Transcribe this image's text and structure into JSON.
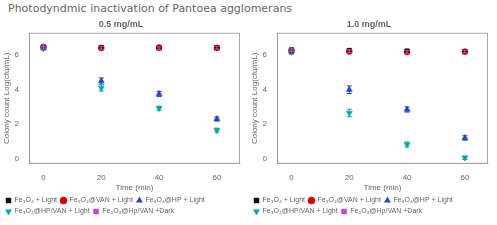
{
  "title": "Photodyndmic inactivation of Pantoea agglomerans",
  "chart_data": [
    {
      "type": "scatter",
      "title": "0.5 mg/mL",
      "x_label": "Time (min)",
      "y_label": "Colony count Log(cfu/mL)",
      "x": [
        0,
        20,
        40,
        60
      ],
      "xlim": [
        -5,
        68
      ],
      "xticks": [
        0,
        20,
        40,
        60
      ],
      "ylim": [
        -0.3,
        7.3
      ],
      "yticks": [
        0,
        2,
        4,
        6
      ],
      "grid": false,
      "legend": "lower left",
      "series": [
        {
          "name": "Fe₃O₄ + Light",
          "color": "#111111",
          "marker": "square",
          "values": [
            6.5,
            6.45,
            6.42,
            6.45
          ],
          "errors": [
            0.12,
            0.08,
            0.08,
            0.08
          ]
        },
        {
          "name": "Fe₃O₄@VAN + Light",
          "color": "#dd0000",
          "marker": "circle",
          "values": [
            6.48,
            6.42,
            6.44,
            6.42
          ],
          "errors": [
            0.1,
            0.08,
            0.08,
            0.08
          ]
        },
        {
          "name": "Fe₃O₄@HP + Light",
          "color": "#2244cc",
          "marker": "triangle_up",
          "values": [
            6.42,
            4.5,
            3.75,
            2.3
          ],
          "errors": [
            0.1,
            0.18,
            0.15,
            0.12
          ]
        },
        {
          "name": "Fe₃O₄@HP/VAN + Light",
          "color": "#00aaaa",
          "marker": "triangle_down",
          "values": [
            6.4,
            4.1,
            2.92,
            1.65
          ],
          "errors": [
            0.1,
            0.18,
            0.12,
            0.12
          ]
        },
        {
          "name": "Fe₃O₄@Hp/VAN +Dark",
          "color": "#cc44cc",
          "marker": "square",
          "values": [
            6.52,
            6.44,
            6.4,
            6.44
          ],
          "errors": [
            0.1,
            0.08,
            0.08,
            0.08
          ]
        }
      ]
    },
    {
      "type": "scatter",
      "title": "1.0 mg/mL",
      "x_label": "Time (min)",
      "y_label": "Colony count Log(cfu/mL)",
      "x": [
        0,
        20,
        40,
        60
      ],
      "xlim": [
        -5,
        68
      ],
      "xticks": [
        0,
        20,
        40,
        60
      ],
      "ylim": [
        -0.3,
        7.3
      ],
      "yticks": [
        0,
        2,
        4,
        6
      ],
      "grid": false,
      "legend": "lower left",
      "series": [
        {
          "name": "Fe₃O₄ + Light",
          "color": "#111111",
          "marker": "square",
          "values": [
            6.3,
            6.28,
            6.25,
            6.22
          ],
          "errors": [
            0.12,
            0.08,
            0.08,
            0.08
          ]
        },
        {
          "name": "Fe₃O₄@VAN + Light",
          "color": "#dd0000",
          "marker": "circle",
          "values": [
            6.28,
            6.22,
            6.18,
            6.2
          ],
          "errors": [
            0.1,
            0.08,
            0.08,
            0.08
          ]
        },
        {
          "name": "Fe₃O₄@HP + Light",
          "color": "#2244cc",
          "marker": "triangle_up",
          "values": [
            6.22,
            4.0,
            2.85,
            1.2
          ],
          "errors": [
            0.12,
            0.22,
            0.15,
            0.13
          ]
        },
        {
          "name": "Fe₃O₄@HP/VAN + Light",
          "color": "#00aaaa",
          "marker": "triangle_down",
          "values": [
            6.18,
            2.65,
            0.82,
            0.05
          ],
          "errors": [
            0.12,
            0.22,
            0.15,
            0.1
          ]
        },
        {
          "name": "Fe₃O₄@Hp/VAN +Dark",
          "color": "#cc44cc",
          "marker": "square",
          "values": [
            6.32,
            6.24,
            6.2,
            6.22
          ],
          "errors": [
            0.1,
            0.08,
            0.08,
            0.08
          ]
        }
      ]
    }
  ]
}
